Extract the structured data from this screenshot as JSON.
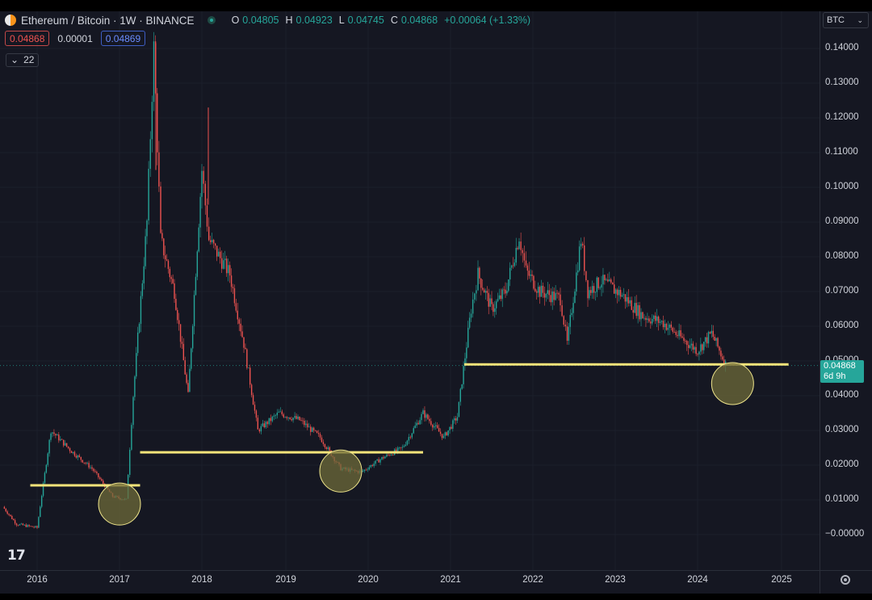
{
  "header": {
    "symbol": "Ethereum / Bitcoin · 1W · BINANCE",
    "ohlc": [
      {
        "key": "O",
        "value": "0.04805"
      },
      {
        "key": "H",
        "value": "0.04923"
      },
      {
        "key": "L",
        "value": "0.04745"
      },
      {
        "key": "C",
        "value": "0.04868"
      }
    ],
    "change": "+0.00064 (+1.33%)",
    "bid": "0.04868",
    "spread": "0.00001",
    "ask": "0.04869",
    "indicators_count": "22",
    "indicators_icon": "chevron-down-icon"
  },
  "price_scale": {
    "unit": "BTC",
    "tick_labels": [
      "0.14000",
      "0.13000",
      "0.12000",
      "0.11000",
      "0.10000",
      "0.09000",
      "0.08000",
      "0.07000",
      "0.06000",
      "0.05000",
      "0.04000",
      "0.03000",
      "0.02000",
      "0.01000",
      "−0.00000"
    ],
    "current_price": "0.04868",
    "countdown": "6d 9h"
  },
  "time_scale": {
    "labels": [
      "2016",
      "2017",
      "2018",
      "2019",
      "2020",
      "2021",
      "2022",
      "2023",
      "2024",
      "2025"
    ]
  },
  "colors": {
    "background": "#151722",
    "up": "#26a69a",
    "down": "#ef5350",
    "support_line": "#f5e47a",
    "circle_fill": "#6e6b3a",
    "circle_stroke": "#f0e68c"
  },
  "icons": {
    "settings": "gear-icon",
    "brand": "tradingview-logo",
    "symbol": "eth-btc-logo"
  },
  "chart_data": {
    "type": "candlestick",
    "title": "Ethereum / Bitcoin · 1W · BINANCE",
    "ylim": [
      -0.003,
      0.145
    ],
    "x_range": [
      "2015-08",
      "2025-03"
    ],
    "series": [
      {
        "name": "ETH/BTC close (approximate trace)",
        "x": [
          "2015-08",
          "2015-10",
          "2016-01",
          "2016-03",
          "2016-06",
          "2016-09",
          "2016-12",
          "2017-02",
          "2017-03",
          "2017-05",
          "2017-06",
          "2017-07",
          "2017-09",
          "2017-11",
          "2018-01",
          "2018-02",
          "2018-05",
          "2018-07",
          "2018-09",
          "2018-12",
          "2019-03",
          "2019-06",
          "2019-09",
          "2019-12",
          "2020-03",
          "2020-06",
          "2020-09",
          "2020-12",
          "2021-02",
          "2021-04",
          "2021-05",
          "2021-07",
          "2021-09",
          "2021-11",
          "2021-12",
          "2022-02",
          "2022-05",
          "2022-06",
          "2022-08",
          "2022-09",
          "2022-11",
          "2023-02",
          "2023-05",
          "2023-08",
          "2023-11",
          "2024-01",
          "2024-03",
          "2024-05"
        ],
        "values": [
          0.008,
          0.003,
          0.002,
          0.03,
          0.024,
          0.019,
          0.011,
          0.01,
          0.04,
          0.09,
          0.14,
          0.085,
          0.07,
          0.04,
          0.105,
          0.085,
          0.075,
          0.055,
          0.03,
          0.035,
          0.033,
          0.028,
          0.019,
          0.018,
          0.022,
          0.025,
          0.035,
          0.028,
          0.034,
          0.065,
          0.075,
          0.065,
          0.07,
          0.086,
          0.076,
          0.07,
          0.068,
          0.055,
          0.085,
          0.07,
          0.073,
          0.069,
          0.063,
          0.061,
          0.056,
          0.053,
          0.058,
          0.049
        ]
      }
    ],
    "annotations": {
      "support_levels": [
        {
          "value": 0.0142,
          "from": "2015-12",
          "to": "2017-04"
        },
        {
          "value": 0.0237,
          "from": "2017-04",
          "to": "2020-09"
        },
        {
          "value": 0.049,
          "from": "2021-03",
          "to": "2025-02"
        }
      ],
      "circles": [
        {
          "x": "2017-01",
          "y": 0.0088
        },
        {
          "x": "2019-09",
          "y": 0.0183
        },
        {
          "x": "2024-06",
          "y": 0.0435
        }
      ]
    }
  }
}
